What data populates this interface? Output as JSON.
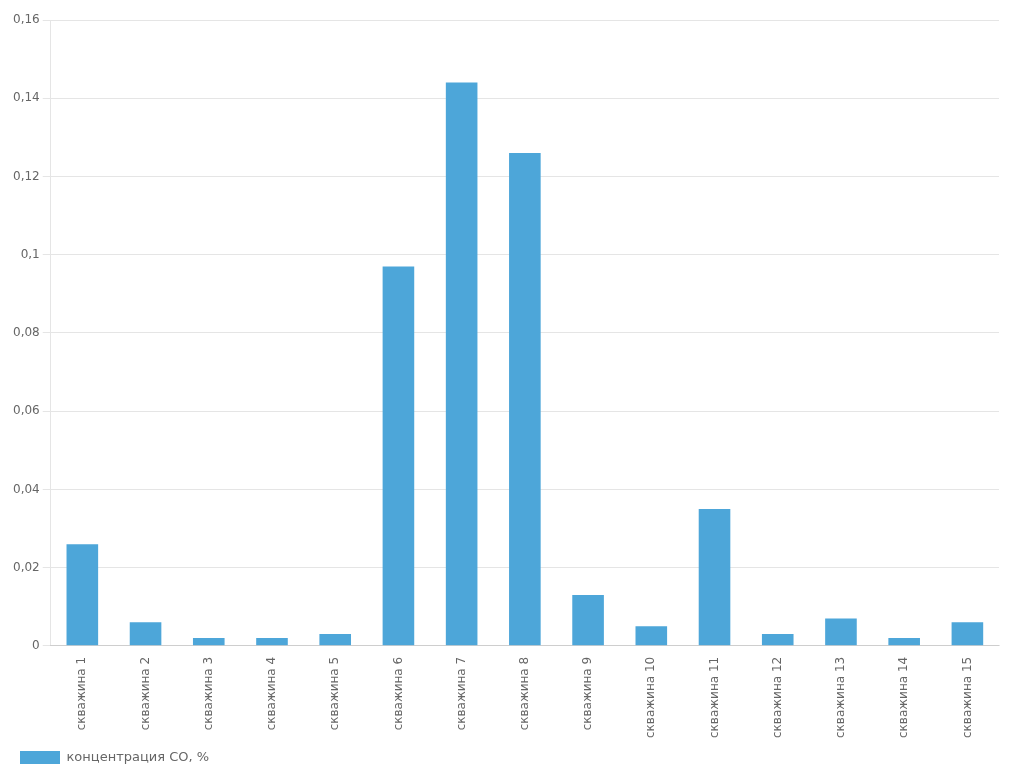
{
  "chart_data": {
    "type": "bar",
    "categories": [
      "скважина 1",
      "скважина 2",
      "скважина 3",
      "скважина 4",
      "скважина 5",
      "скважина 6",
      "скважина 7",
      "скважина 8",
      "скважина 9",
      "скважина 10",
      "скважина 11",
      "скважина 12",
      "скважина 13",
      "скважина 14",
      "скважина 15"
    ],
    "series": [
      {
        "name": "концентрация CO, %",
        "color": "#4da6d9",
        "values": [
          0.026,
          0.006,
          0.002,
          0.002,
          0.003,
          0.097,
          0.144,
          0.126,
          0.013,
          0.005,
          0.035,
          0.003,
          0.007,
          0.002,
          0.006
        ]
      }
    ],
    "ylim": [
      0,
      0.16
    ],
    "yticks": [
      0,
      {
        "value": 0.02,
        "label": "0,02"
      },
      {
        "value": 0.04,
        "label": "0,04"
      },
      {
        "value": 0.06,
        "label": "0,06"
      },
      {
        "value": 0.08,
        "label": "0,08"
      },
      {
        "value": 0.1,
        "label": "0,1"
      },
      {
        "value": 0.12,
        "label": "0,12"
      },
      {
        "value": 0.14,
        "label": "0,14"
      },
      {
        "value": 0.16,
        "label": "0,16"
      }
    ],
    "grid": true,
    "legend": "lower left"
  }
}
